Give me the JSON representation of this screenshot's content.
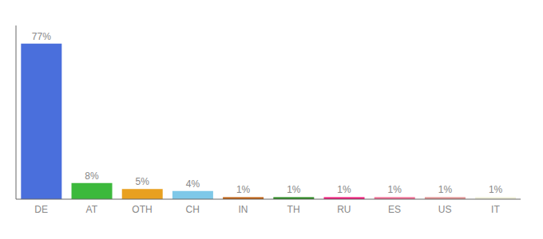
{
  "chart_data": {
    "type": "bar",
    "categories": [
      "DE",
      "AT",
      "OTH",
      "CH",
      "IN",
      "TH",
      "RU",
      "ES",
      "US",
      "IT"
    ],
    "values": [
      77,
      8,
      5,
      4,
      1,
      1,
      1,
      1,
      1,
      1
    ],
    "value_labels": [
      "77%",
      "8%",
      "5%",
      "4%",
      "1%",
      "1%",
      "1%",
      "1%",
      "1%",
      "1%"
    ],
    "data_labels": true,
    "colors": [
      "#4a6fdc",
      "#3cb93c",
      "#e8a020",
      "#7ec8e8",
      "#c06010",
      "#2a8a20",
      "#f01878",
      "#f06890",
      "#e09090",
      "#f0f0d8"
    ],
    "ylim": [
      0,
      86
    ],
    "tick_labels": "x",
    "grid": false
  }
}
